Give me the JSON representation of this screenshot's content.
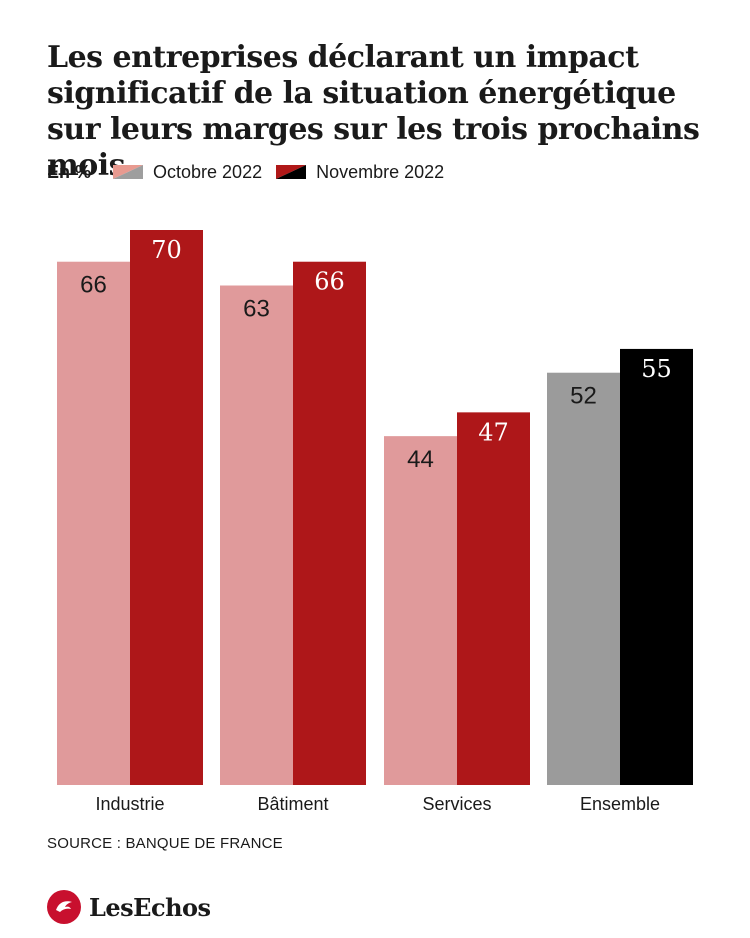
{
  "header": {
    "title": "Les entreprises déclarant un impact significatif de la situation énergétique sur leurs marges sur les trois prochains mois",
    "unit": "En %"
  },
  "legend": {
    "items": [
      {
        "label": "Octobre 2022",
        "swatch_colors": [
          "#e89a90",
          "#9e9e9e"
        ]
      },
      {
        "label": "Novembre 2022",
        "swatch_colors": [
          "#b01818",
          "#000000"
        ]
      }
    ]
  },
  "chart_data": {
    "type": "bar",
    "categories": [
      "Industrie",
      "Bâtiment",
      "Services",
      "Ensemble"
    ],
    "series": [
      {
        "name": "Octobre 2022",
        "values": [
          66,
          63,
          44,
          52
        ]
      },
      {
        "name": "Novembre 2022",
        "values": [
          70,
          66,
          47,
          55
        ]
      }
    ],
    "ylim": [
      0,
      70
    ],
    "grid": false,
    "colors": {
      "octobre": "#e09a9b",
      "novembre": "#ae1719",
      "octobre_ensemble": "#9b9b9b",
      "novembre_ensemble": "#000000"
    }
  },
  "footer": {
    "source": "SOURCE : BANQUE DE FRANCE",
    "brand": "LesEchos",
    "brand_color": "#c8102e"
  }
}
